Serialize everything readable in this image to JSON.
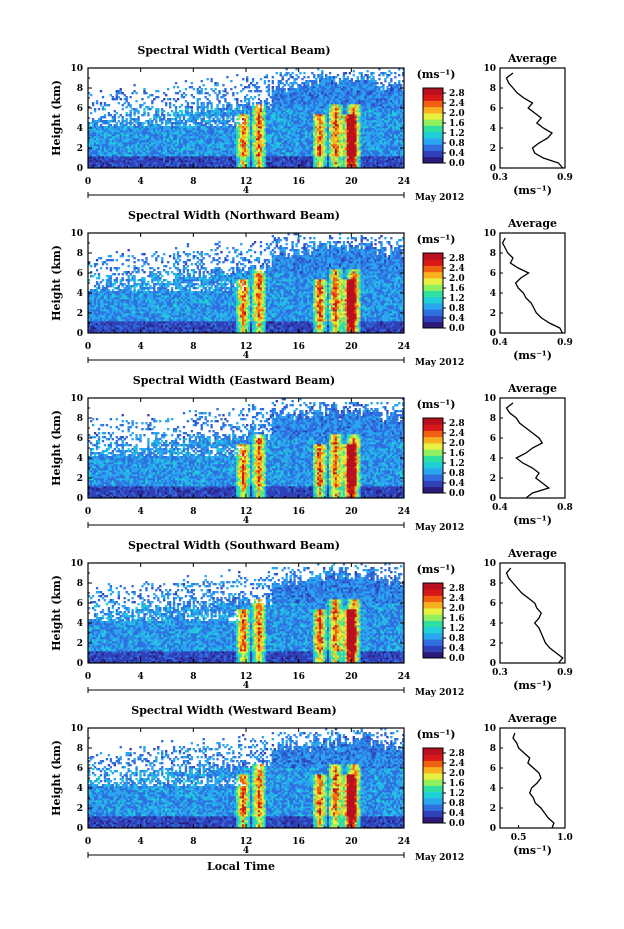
{
  "figure": {
    "xlabel": "Local Time",
    "date_label": "May 2012",
    "date_day": "4",
    "units_label": "(ms⁻¹)",
    "profile_title": "Average",
    "profile_xlabel": "(ms⁻¹)"
  },
  "colors": {
    "colormap": [
      "#2b1a7a",
      "#3040b8",
      "#2f6fe0",
      "#2aa6f0",
      "#20d0d8",
      "#30e0a0",
      "#90f060",
      "#e8f040",
      "#f8b020",
      "#f06010",
      "#d81818",
      "#b81020"
    ]
  },
  "chart_data": [
    {
      "type": "heatmap",
      "title": "Spectral Width (Vertical Beam)",
      "xlabel": "",
      "ylabel": "Height (km)",
      "xlim": [
        0,
        24
      ],
      "ylim": [
        0,
        10
      ],
      "x_ticks": [
        0,
        4,
        8,
        12,
        16,
        20,
        24
      ],
      "y_ticks": [
        0,
        2,
        4,
        6,
        8,
        10
      ],
      "colorbar": {
        "ticks": [
          "0.0",
          "0.4",
          "0.8",
          "1.2",
          "1.6",
          "2.0",
          "2.4",
          "2.8"
        ],
        "range": [
          0,
          3.0
        ]
      },
      "profile": {
        "title": "Average",
        "xlim": [
          0.3,
          0.9
        ],
        "x_ticks": [
          "0.3",
          "0.9"
        ],
        "heights": [
          0,
          0.5,
          1,
          1.5,
          2,
          2.5,
          3,
          3.5,
          4,
          4.5,
          5,
          5.5,
          6,
          6.5,
          7,
          7.5,
          8,
          8.5,
          9,
          9.5
        ],
        "values": [
          0.88,
          0.84,
          0.7,
          0.62,
          0.6,
          0.66,
          0.74,
          0.78,
          0.7,
          0.64,
          0.68,
          0.62,
          0.56,
          0.6,
          0.52,
          0.46,
          0.42,
          0.38,
          0.36,
          0.42
        ]
      }
    },
    {
      "type": "heatmap",
      "title": "Spectral Width (Northward Beam)",
      "xlabel": "",
      "ylabel": "Height (km)",
      "xlim": [
        0,
        24
      ],
      "ylim": [
        0,
        10
      ],
      "x_ticks": [
        0,
        4,
        8,
        12,
        16,
        20,
        24
      ],
      "y_ticks": [
        0,
        2,
        4,
        6,
        8,
        10
      ],
      "colorbar": {
        "ticks": [
          "0.0",
          "0.4",
          "0.8",
          "1.2",
          "1.6",
          "2.0",
          "2.4",
          "2.8"
        ],
        "range": [
          0,
          3.0
        ]
      },
      "profile": {
        "title": "Average",
        "xlim": [
          0.4,
          0.9
        ],
        "x_ticks": [
          "0.4",
          "0.9"
        ],
        "heights": [
          0,
          0.5,
          1,
          1.5,
          2,
          2.5,
          3,
          3.5,
          4,
          4.5,
          5,
          5.5,
          6,
          6.5,
          7,
          7.5,
          8,
          8.5,
          9,
          9.5
        ],
        "values": [
          0.88,
          0.86,
          0.78,
          0.72,
          0.68,
          0.66,
          0.64,
          0.6,
          0.58,
          0.54,
          0.52,
          0.56,
          0.62,
          0.54,
          0.48,
          0.5,
          0.46,
          0.44,
          0.42,
          0.44
        ]
      }
    },
    {
      "type": "heatmap",
      "title": "Spectral Width (Eastward Beam)",
      "xlabel": "",
      "ylabel": "Height (km)",
      "xlim": [
        0,
        24
      ],
      "ylim": [
        0,
        10
      ],
      "x_ticks": [
        0,
        4,
        8,
        12,
        16,
        20,
        24
      ],
      "y_ticks": [
        0,
        2,
        4,
        6,
        8,
        10
      ],
      "colorbar": {
        "ticks": [
          "0.0",
          "0.4",
          "0.8",
          "1.2",
          "1.6",
          "2.0",
          "2.4",
          "2.8"
        ],
        "range": [
          0,
          3.0
        ]
      },
      "profile": {
        "title": "Average",
        "xlim": [
          0.4,
          0.8
        ],
        "x_ticks": [
          "0.4",
          "0.8"
        ],
        "heights": [
          0,
          0.5,
          1,
          1.5,
          2,
          2.5,
          3,
          3.5,
          4,
          4.5,
          5,
          5.5,
          6,
          6.5,
          7,
          7.5,
          8,
          8.5,
          9,
          9.5
        ],
        "values": [
          0.56,
          0.6,
          0.7,
          0.66,
          0.62,
          0.64,
          0.6,
          0.54,
          0.5,
          0.56,
          0.6,
          0.66,
          0.64,
          0.6,
          0.56,
          0.52,
          0.5,
          0.46,
          0.44,
          0.48
        ]
      }
    },
    {
      "type": "heatmap",
      "title": "Spectral Width (Southward Beam)",
      "xlabel": "",
      "ylabel": "Height (km)",
      "xlim": [
        0,
        24
      ],
      "ylim": [
        0,
        10
      ],
      "x_ticks": [
        0,
        4,
        8,
        12,
        16,
        20,
        24
      ],
      "y_ticks": [
        0,
        2,
        4,
        6,
        8,
        10
      ],
      "colorbar": {
        "ticks": [
          "0.0",
          "0.4",
          "0.8",
          "1.2",
          "1.6",
          "2.0",
          "2.4",
          "2.8"
        ],
        "range": [
          0,
          3.0
        ]
      },
      "profile": {
        "title": "Average",
        "xlim": [
          0.3,
          0.9
        ],
        "x_ticks": [
          "0.3",
          "0.9"
        ],
        "heights": [
          0,
          0.5,
          1,
          1.5,
          2,
          2.5,
          3,
          3.5,
          4,
          4.5,
          5,
          5.5,
          6,
          6.5,
          7,
          7.5,
          8,
          8.5,
          9,
          9.5
        ],
        "values": [
          0.84,
          0.88,
          0.82,
          0.76,
          0.72,
          0.7,
          0.68,
          0.66,
          0.62,
          0.66,
          0.68,
          0.64,
          0.62,
          0.56,
          0.5,
          0.46,
          0.42,
          0.38,
          0.36,
          0.4
        ]
      }
    },
    {
      "type": "heatmap",
      "title": "Spectral Width (Westward Beam)",
      "xlabel": "Local Time",
      "ylabel": "Height (km)",
      "xlim": [
        0,
        24
      ],
      "ylim": [
        0,
        10
      ],
      "x_ticks": [
        0,
        4,
        8,
        12,
        16,
        20,
        24
      ],
      "y_ticks": [
        0,
        2,
        4,
        6,
        8,
        10
      ],
      "colorbar": {
        "ticks": [
          "0.0",
          "0.4",
          "0.8",
          "1.2",
          "1.6",
          "2.0",
          "2.4",
          "2.8"
        ],
        "range": [
          0,
          3.0
        ]
      },
      "profile": {
        "title": "Average",
        "xlim": [
          0.3,
          1.0
        ],
        "x_ticks": [
          "0.5",
          "1.0"
        ],
        "heights": [
          0,
          0.5,
          1,
          1.5,
          2,
          2.5,
          3,
          3.5,
          4,
          4.5,
          5,
          5.5,
          6,
          6.5,
          7,
          7.5,
          8,
          8.5,
          9,
          9.5
        ],
        "values": [
          0.86,
          0.88,
          0.82,
          0.78,
          0.74,
          0.68,
          0.66,
          0.62,
          0.64,
          0.7,
          0.74,
          0.72,
          0.66,
          0.6,
          0.62,
          0.56,
          0.5,
          0.48,
          0.44,
          0.46
        ]
      }
    }
  ]
}
